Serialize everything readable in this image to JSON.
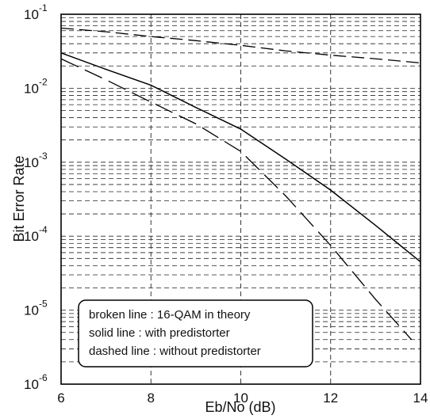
{
  "chart_data": {
    "type": "line",
    "title": "",
    "xlabel": "Eb/No (dB)",
    "ylabel": "Bit Error Rate",
    "xlim": [
      6,
      14
    ],
    "ylim": [
      1e-06,
      0.1
    ],
    "y_scale": "log",
    "grid": true,
    "x_ticks": [
      {
        "value": 6,
        "label": "6"
      },
      {
        "value": 8,
        "label": "8"
      },
      {
        "value": 10,
        "label": "10"
      },
      {
        "value": 12,
        "label": "12"
      },
      {
        "value": 14,
        "label": "14"
      }
    ],
    "y_ticks": [
      {
        "exp": -6,
        "base": "10",
        "sup": "-6"
      },
      {
        "exp": -5,
        "base": "10",
        "sup": "-5"
      },
      {
        "exp": -4,
        "base": "10",
        "sup": "-4"
      },
      {
        "exp": -3,
        "base": "10",
        "sup": "-3"
      },
      {
        "exp": -2,
        "base": "10",
        "sup": "-2"
      },
      {
        "exp": -1,
        "base": "10",
        "sup": "-1"
      }
    ],
    "series": [
      {
        "style": "broken",
        "points": [
          [
            6,
            0.065
          ],
          [
            7,
            0.058
          ],
          [
            8,
            0.05
          ],
          [
            9,
            0.044
          ],
          [
            10,
            0.038
          ],
          [
            11,
            0.032
          ],
          [
            12,
            0.028
          ],
          [
            13,
            0.025
          ],
          [
            14,
            0.022
          ]
        ]
      },
      {
        "style": "solid",
        "points": [
          [
            6,
            0.03
          ],
          [
            7,
            0.018
          ],
          [
            8,
            0.011
          ],
          [
            9,
            0.0055
          ],
          [
            10,
            0.0028
          ],
          [
            11,
            0.0011
          ],
          [
            12,
            0.00042
          ],
          [
            13,
            0.00014
          ],
          [
            14,
            4.5e-05
          ]
        ]
      },
      {
        "style": "dashed",
        "points": [
          [
            6,
            0.025
          ],
          [
            7,
            0.013
          ],
          [
            8,
            0.0065
          ],
          [
            9,
            0.0033
          ],
          [
            10,
            0.0014
          ],
          [
            11,
            0.00035
          ],
          [
            12,
            7.5e-05
          ],
          [
            13,
            1.4e-05
          ],
          [
            13.8,
            4e-06
          ]
        ]
      }
    ],
    "legend": {
      "placement": "bottom-left",
      "entries": [
        "broken line : 16-QAM in theory",
        "solid line : with predistorter",
        "dashed line : without predistorter"
      ]
    }
  }
}
